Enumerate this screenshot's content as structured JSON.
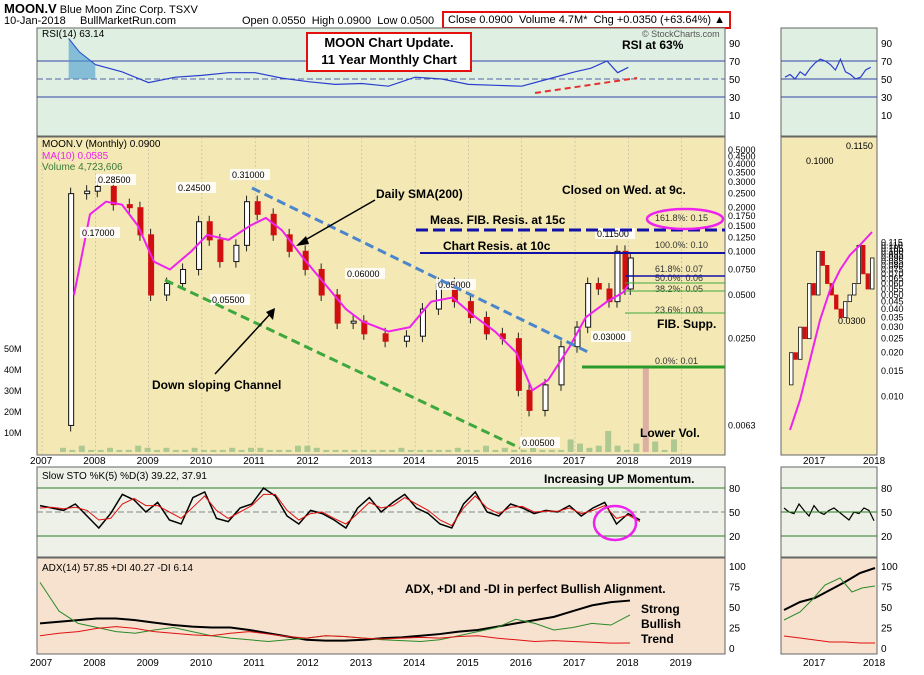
{
  "header": {
    "symbol": "MOON.V",
    "company": "Blue Moon Zinc Corp.",
    "exchange": "TSXV",
    "date": "10-Jan-2018",
    "site": "BullMarketRun.com",
    "open_label": "Open",
    "open": "0.0550",
    "high_label": "High",
    "high": "0.0900",
    "low_label": "Low",
    "low": "0.0500",
    "close_label": "Close",
    "close": "0.0900",
    "volume_label": "Volume",
    "volume": "4.7M*",
    "chg_label": "Chg",
    "chg": "+0.0350 (+63.64%)",
    "watermark": "© StockCharts.com"
  },
  "annotations": {
    "title_line1": "MOON Chart Update.",
    "title_line2": "11 Year Monthly Chart",
    "rsi_note": "RSI at 63%",
    "closed_note": "Closed on Wed. at 9c.",
    "fib_resis": "Meas. FIB. Resis. at 15c",
    "chart_resis": "Chart Resis. at 10c",
    "daily_sma": "Daily SMA(200)",
    "channel": "Down sloping Channel",
    "fib_supp": "FIB. Supp.",
    "lower_vol": "Lower Vol.",
    "sto_note": "Increasing UP Momentum.",
    "adx_note": "ADX, +DI and -DI in perfect Bullish Alignment.",
    "trend_line1": "Strong",
    "trend_line2": "Bullish",
    "trend_line3": "Trend"
  },
  "colors": {
    "rsi_bg": "#dfefe1",
    "price_bg": "#f4e9b4",
    "sto_bg": "#eef1e7",
    "adx_bg": "#f6e2cf",
    "up": "#111111",
    "down": "#d01010",
    "ma": "#ee22ee",
    "rsi": "#2a3fcf",
    "sma_line": "#4b86cc",
    "channel": "#3ea83e",
    "annot_box": "#e41010"
  },
  "chart_data": [
    {
      "type": "line",
      "name_label": "RSI(14) 63.14",
      "title": "RSI(14) 63.14",
      "ylim": [
        0,
        100
      ],
      "y_ticks": [
        "90",
        "70",
        "50",
        "30",
        "10"
      ],
      "x": [
        "2007.5",
        "2007.7",
        "2008",
        "2008.5",
        "2009",
        "2009.5",
        "2010",
        "2010.5",
        "2011",
        "2011.5",
        "2012",
        "2012.5",
        "2013",
        "2013.5",
        "2014",
        "2014.5",
        "2015",
        "2015.5",
        "2016",
        "2016.5",
        "2017",
        "2017.3",
        "2017.6",
        "2017.8",
        "2018"
      ],
      "values": [
        95,
        80,
        66,
        58,
        46,
        52,
        54,
        57,
        57,
        51,
        47,
        44,
        45,
        42,
        52,
        50,
        44,
        43,
        42,
        50,
        58,
        62,
        70,
        57,
        63
      ]
    },
    {
      "type": "candlestick",
      "title": "MOON.V (Monthly) 0.0900",
      "scale": "log",
      "legend": [
        "MA(10) 0.0585",
        "Volume 4,723,606"
      ],
      "y_ticks": [
        "0.5000",
        "0.4500",
        "0.4000",
        "0.3500",
        "0.3000",
        "0.2500",
        "0.2000",
        "0.1750",
        "0.1500",
        "0.1250",
        "0.1000",
        "0.0750",
        "0.0500",
        "0.0250",
        "0.0063"
      ],
      "volume_ticks": [
        "50M",
        "40M",
        "30M",
        "20M",
        "10M"
      ],
      "x_ticks": [
        "2007",
        "2008",
        "2009",
        "2010",
        "2011",
        "2012",
        "2013",
        "2014",
        "2015",
        "2016",
        "2017",
        "2018",
        "2019"
      ],
      "price_labels": [
        "0.28500",
        "0.17000",
        "0.24500",
        "0.05500",
        "0.31000",
        "0.06000",
        "0.05000",
        "0.00500",
        "0.03000",
        "0.11500"
      ],
      "fib_levels": [
        "161.8%: 0.15",
        "100.0%: 0.10",
        "61.8%: 0.07",
        "50.0%: 0.06",
        "38.2%: 0.05",
        "23.6%: 0.03",
        "0.0%: 0.01"
      ],
      "close_path": [
        [
          "2007.45",
          0.0063
        ],
        [
          "2007.5",
          0.25
        ],
        [
          "2007.8",
          0.26
        ],
        [
          "2008.0",
          0.28
        ],
        [
          "2008.3",
          0.21
        ],
        [
          "2008.6",
          0.2
        ],
        [
          "2008.8",
          0.13
        ],
        [
          "2009.0",
          0.05
        ],
        [
          "2009.3",
          0.06
        ],
        [
          "2009.6",
          0.075
        ],
        [
          "2009.9",
          0.16
        ],
        [
          "2010.1",
          0.12
        ],
        [
          "2010.3",
          0.085
        ],
        [
          "2010.6",
          0.11
        ],
        [
          "2010.8",
          0.22
        ],
        [
          "2011.0",
          0.18
        ],
        [
          "2011.3",
          0.13
        ],
        [
          "2011.6",
          0.1
        ],
        [
          "2011.9",
          0.075
        ],
        [
          "2012.2",
          0.05
        ],
        [
          "2012.5",
          0.032
        ],
        [
          "2012.8",
          0.033
        ],
        [
          "2013.0",
          0.027
        ],
        [
          "2013.4",
          0.024
        ],
        [
          "2013.8",
          0.026
        ],
        [
          "2014.1",
          0.04
        ],
        [
          "2014.4",
          0.06
        ],
        [
          "2014.7",
          0.045
        ],
        [
          "2015.0",
          0.035
        ],
        [
          "2015.3",
          0.027
        ],
        [
          "2015.6",
          0.025
        ],
        [
          "2015.9",
          0.011
        ],
        [
          "2016.1",
          0.008
        ],
        [
          "2016.4",
          0.012
        ],
        [
          "2016.7",
          0.022
        ],
        [
          "2017.0",
          0.03
        ],
        [
          "2017.2",
          0.06
        ],
        [
          "2017.4",
          0.055
        ],
        [
          "2017.6",
          0.045
        ],
        [
          "2017.75",
          0.1
        ],
        [
          "2017.9",
          0.055
        ],
        [
          "2018.0",
          0.09
        ]
      ],
      "ma10_path": [
        [
          "2007.6",
          0.05
        ],
        [
          "2007.9",
          0.18
        ],
        [
          "2008.2",
          0.22
        ],
        [
          "2008.5",
          0.21
        ],
        [
          "2008.8",
          0.15
        ],
        [
          "2009.1",
          0.085
        ],
        [
          "2009.4",
          0.075
        ],
        [
          "2009.8",
          0.1
        ],
        [
          "2010.1",
          0.13
        ],
        [
          "2010.5",
          0.12
        ],
        [
          "2010.9",
          0.15
        ],
        [
          "2011.2",
          0.17
        ],
        [
          "2011.5",
          0.14
        ],
        [
          "2011.9",
          0.09
        ],
        [
          "2012.3",
          0.06
        ],
        [
          "2012.7",
          0.04
        ],
        [
          "2013.0",
          0.033
        ],
        [
          "2013.5",
          0.028
        ],
        [
          "2013.9",
          0.03
        ],
        [
          "2014.3",
          0.045
        ],
        [
          "2014.7",
          0.048
        ],
        [
          "2015.1",
          0.036
        ],
        [
          "2015.5",
          0.028
        ],
        [
          "2015.9",
          0.02
        ],
        [
          "2016.2",
          0.011
        ],
        [
          "2016.5",
          0.013
        ],
        [
          "2016.9",
          0.022
        ],
        [
          "2017.2",
          0.035
        ],
        [
          "2017.6",
          0.045
        ],
        [
          "2017.9",
          0.052
        ],
        [
          "2018.0",
          0.0585
        ]
      ],
      "volume_bars_M": [
        2,
        1,
        3,
        1,
        1,
        2,
        1,
        1,
        3,
        2,
        1,
        2,
        1,
        1,
        2,
        1,
        1,
        1,
        2,
        1,
        2,
        2,
        1,
        1,
        1,
        3,
        3,
        2,
        1,
        1,
        1,
        1,
        1,
        1,
        1,
        1,
        2,
        1,
        1,
        1,
        1,
        1,
        2,
        1,
        1,
        3,
        1,
        2,
        1,
        1,
        2,
        1,
        1,
        1,
        6,
        4,
        2,
        3,
        10,
        3,
        1,
        4,
        40,
        5,
        1,
        6
      ]
    },
    {
      "type": "line",
      "title": "Slow STO %K(5) %D(3) 39.22, 37.91",
      "series": [
        {
          "name": "%K(5) 39.22",
          "values": [
            58,
            55,
            52,
            60,
            45,
            30,
            48,
            72,
            65,
            50,
            62,
            40,
            35,
            68,
            75,
            42,
            38,
            55,
            60,
            80,
            70,
            45,
            35,
            52,
            48,
            40,
            30,
            55,
            68,
            50,
            62,
            72,
            55,
            48,
            35,
            30,
            60,
            75,
            50,
            45,
            60,
            55,
            48,
            52,
            50,
            58,
            45,
            55,
            62,
            35,
            48,
            40
          ]
        },
        {
          "name": "%D(3) 37.91",
          "values": [
            55,
            56,
            54,
            56,
            52,
            40,
            42,
            60,
            67,
            58,
            58,
            50,
            42,
            56,
            70,
            52,
            42,
            50,
            58,
            72,
            72,
            52,
            40,
            48,
            50,
            42,
            35,
            48,
            62,
            55,
            58,
            68,
            60,
            52,
            40,
            33,
            55,
            70,
            55,
            48,
            56,
            57,
            50,
            51,
            51,
            55,
            48,
            52,
            58,
            42,
            46,
            38
          ]
        }
      ],
      "ylim": [
        0,
        100
      ],
      "y_ticks": [
        "80",
        "50",
        "20"
      ]
    },
    {
      "type": "line",
      "title": "ADX(14) 57.85 +DI 40.27 -DI 6.14",
      "series": [
        {
          "name": "ADX(14) 57.85",
          "values": [
            30,
            32,
            34,
            36,
            36,
            34,
            31,
            28,
            26,
            25,
            25,
            22,
            18,
            14,
            10,
            9,
            9,
            10,
            12,
            13,
            15,
            17,
            20,
            22,
            26,
            30,
            34,
            38,
            45,
            52,
            56,
            57.85
          ]
        },
        {
          "name": "+DI 40.27",
          "values": [
            80,
            45,
            30,
            25,
            20,
            18,
            22,
            25,
            20,
            15,
            12,
            10,
            8,
            10,
            12,
            15,
            14,
            12,
            10,
            9,
            8,
            10,
            15,
            20,
            25,
            35,
            30,
            22,
            25,
            30,
            28,
            40.27
          ]
        },
        {
          "name": "-DI 6.14",
          "values": [
            15,
            18,
            20,
            24,
            26,
            24,
            20,
            18,
            16,
            15,
            18,
            20,
            17,
            14,
            12,
            15,
            14,
            12,
            11,
            12,
            13,
            12,
            14,
            15,
            12,
            10,
            8,
            9,
            8,
            7,
            6,
            6.14
          ]
        }
      ],
      "ylim": [
        0,
        100
      ],
      "y_ticks": [
        "100",
        "75",
        "50",
        "25",
        "0"
      ]
    }
  ]
}
